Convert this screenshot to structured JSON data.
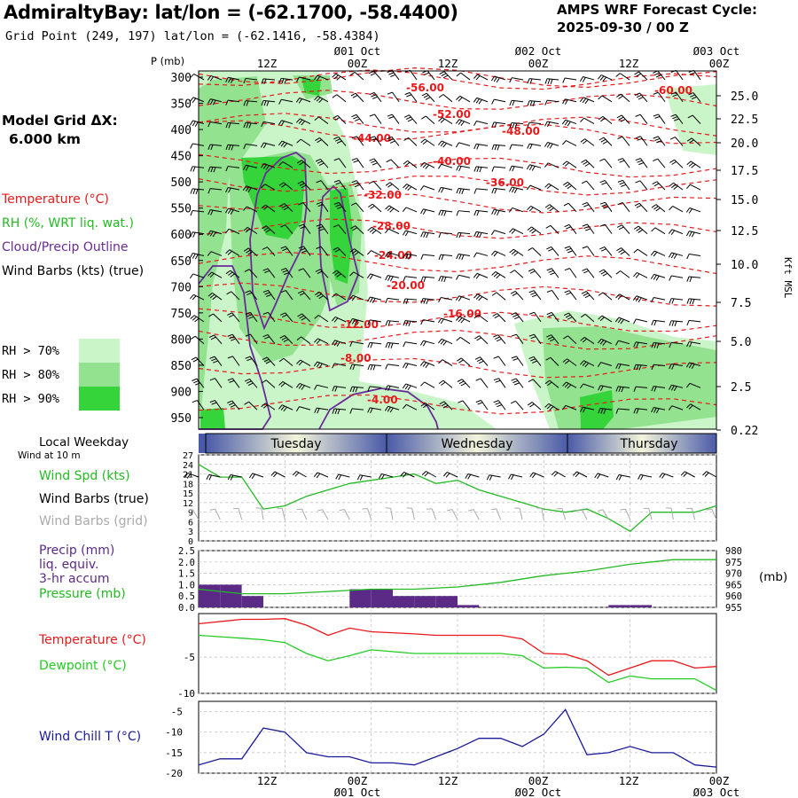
{
  "header": {
    "title": "AdmiraltyBay:  lat/lon = (-62.1700, -58.4400)",
    "grid_point": "Grid Point (249, 197) lat/lon = (-62.1416, -58.4384)",
    "cycle_line1": "AMPS WRF Forecast Cycle:",
    "cycle_line2": "2025-09-30 / 00  Z"
  },
  "model_grid": {
    "line1": "Model Grid ΔX:",
    "line2": "6.000 km"
  },
  "legend": {
    "temperature": "Temperature (°C)",
    "rh": "RH (%, WRT liq. wat.)",
    "cloud": "Cloud/Precip Outline",
    "barbs": "Wind Barbs (kts) (true)",
    "rh70": "RH > 70%",
    "rh80": "RH > 80%",
    "rh90": "RH > 90%"
  },
  "colors": {
    "temperature": "#e8191b",
    "rh70": "#c9f5c9",
    "rh80": "#92e28f",
    "rh90": "#35d43a",
    "cloud": "#6a2a9a",
    "wind": "#22bb22",
    "precip": "#5a2a86",
    "dewpoint": "#22cc22",
    "windchill": "#1a1a99",
    "grid_barbs": "#aaaaaa"
  },
  "top_time_axis": {
    "date_labels": [
      "Ø01 Oct",
      "Ø02 Oct",
      "Ø03 Oct"
    ],
    "hour_labels": [
      "12Z",
      "00Z",
      "12Z",
      "00Z",
      "12Z",
      "00Z"
    ]
  },
  "bottom_time_axis": {
    "hour_labels": [
      "12Z",
      "00Z",
      "12Z",
      "00Z",
      "12Z",
      "00Z"
    ],
    "date_labels": [
      "Ø01 Oct",
      "Ø02 Oct",
      "Ø03 Oct"
    ]
  },
  "cross_section": {
    "pressure_label": "P (mb)",
    "pressure_ticks": [
      "300",
      "350",
      "400",
      "450",
      "500",
      "550",
      "600",
      "650",
      "700",
      "750",
      "800",
      "850",
      "900",
      "950"
    ],
    "height_label": "Kft MSL",
    "height_ticks": [
      "25.0",
      "22.5",
      "20.0",
      "17.5",
      "15.0",
      "12.5",
      "10.0",
      "7.5",
      "5.0",
      "2.5",
      "0.22"
    ]
  },
  "weekday": {
    "label": "Local Weekday",
    "wind_note": "Wind at 10 m",
    "days": [
      "Tuesday",
      "Wednesday",
      "Thursday"
    ]
  },
  "wind_panel": {
    "spd_label": "Wind Spd (kts)",
    "barbs_true_label": "Wind Barbs (true)",
    "barbs_grid_label": "Wind Barbs (grid)",
    "y_ticks": [
      "27",
      "24",
      "21",
      "18",
      "15",
      "12",
      "9",
      "6",
      "3",
      "0"
    ]
  },
  "precip_panel": {
    "label1": "Precip (mm)",
    "label2": "liq. equiv.",
    "label3": "3-hr accum",
    "pressure_label": "Pressure (mb)",
    "mb_unit": "(mb)",
    "left_ticks": [
      "2.5",
      "2.0",
      "1.5",
      "1.0",
      "0.5",
      "0.0"
    ],
    "right_ticks": [
      "980",
      "975",
      "970",
      "965",
      "960",
      "955"
    ]
  },
  "temp_panel": {
    "temp_label": "Temperature (°C)",
    "dew_label": "Dewpoint (°C)",
    "y_ticks": [
      "-5",
      "-10"
    ]
  },
  "chill_panel": {
    "label": "Wind Chill T (°C)",
    "y_ticks": [
      "-5",
      "-10",
      "-15",
      "-20"
    ]
  },
  "chart_data": [
    {
      "type": "line",
      "name": "cross-section-isotherms",
      "contour_labels": [
        "-60.00",
        "-56.00",
        "-52.00",
        "-48.00",
        "-44.00",
        "-40.00",
        "-36.00",
        "-32.00",
        "-28.00",
        "-24.00",
        "-20.00",
        "-16.00",
        "-12.00",
        "-8.00",
        "-4.00"
      ]
    },
    {
      "type": "line",
      "name": "wind-speed-10m",
      "x": [
        0,
        3,
        6,
        9,
        12,
        15,
        18,
        21,
        24,
        27,
        30,
        33,
        36,
        39,
        42,
        45,
        48,
        51,
        54,
        57,
        60,
        63,
        66,
        69,
        72
      ],
      "values": [
        24,
        20,
        20,
        10,
        11,
        14,
        16,
        18,
        19,
        20,
        21,
        18,
        19,
        16,
        14,
        12,
        10,
        9,
        10,
        7,
        3,
        9,
        9,
        9,
        11
      ],
      "ylim": [
        0,
        27
      ]
    },
    {
      "type": "bar",
      "name": "precip-3hr",
      "x": [
        0,
        3,
        6,
        9,
        12,
        15,
        18,
        21,
        24,
        27,
        30,
        33,
        36,
        39,
        42,
        45,
        48,
        51,
        54,
        57,
        60,
        63,
        66,
        69
      ],
      "values": [
        1.0,
        1.0,
        0.5,
        0.0,
        0.0,
        0.0,
        0.0,
        0.8,
        0.8,
        0.5,
        0.5,
        0.5,
        0.1,
        0.0,
        0.0,
        0.0,
        0.0,
        0.0,
        0.0,
        0.1,
        0.1,
        0.0,
        0.0,
        0.0
      ],
      "ylim": [
        0,
        2.5
      ]
    },
    {
      "type": "line",
      "name": "surface-pressure",
      "x": [
        0,
        6,
        12,
        18,
        24,
        30,
        36,
        42,
        48,
        54,
        60,
        66,
        72
      ],
      "values": [
        963,
        961,
        961,
        962,
        963,
        963,
        964,
        966,
        969,
        971,
        974,
        976,
        976
      ],
      "ylim": [
        955,
        980
      ]
    },
    {
      "type": "line",
      "name": "temperature-dewpoint",
      "x": [
        0,
        6,
        9,
        12,
        15,
        18,
        21,
        24,
        30,
        33,
        36,
        42,
        45,
        48,
        51,
        54,
        57,
        60,
        63,
        66,
        69,
        72
      ],
      "series": [
        {
          "name": "Temperature (°C)",
          "values": [
            -0.4,
            0.2,
            0.2,
            0.3,
            -0.6,
            -2.0,
            -1.0,
            -1.5,
            -1.8,
            -2.0,
            -2.0,
            -2.0,
            -2.5,
            -4.5,
            -4.6,
            -5.5,
            -7.5,
            -6.5,
            -5.5,
            -5.5,
            -6.5,
            -6.3
          ]
        },
        {
          "name": "Dewpoint (°C)",
          "values": [
            -2.0,
            -2.4,
            -2.6,
            -3.0,
            -4.5,
            -5.5,
            -4.8,
            -4.0,
            -4.5,
            -4.5,
            -4.5,
            -4.5,
            -4.8,
            -6.5,
            -6.4,
            -6.5,
            -8.5,
            -7.6,
            -8.0,
            -8.0,
            -8.0,
            -9.6
          ]
        }
      ],
      "ylim": [
        -10,
        1
      ]
    },
    {
      "type": "line",
      "name": "wind-chill",
      "x": [
        0,
        3,
        6,
        9,
        12,
        15,
        18,
        21,
        24,
        27,
        30,
        33,
        36,
        39,
        42,
        45,
        48,
        51,
        54,
        57,
        60,
        63,
        66,
        69,
        72
      ],
      "values": [
        -18,
        -16.5,
        -16.5,
        -9,
        -10,
        -15,
        -16,
        -16,
        -17.5,
        -17.5,
        -18,
        -16,
        -14,
        -11.5,
        -11.5,
        -13.5,
        -10.5,
        -4.5,
        -15.5,
        -15,
        -13.5,
        -15,
        -15,
        -18,
        -18.5
      ],
      "ylim": [
        -20,
        -2.5
      ]
    }
  ]
}
